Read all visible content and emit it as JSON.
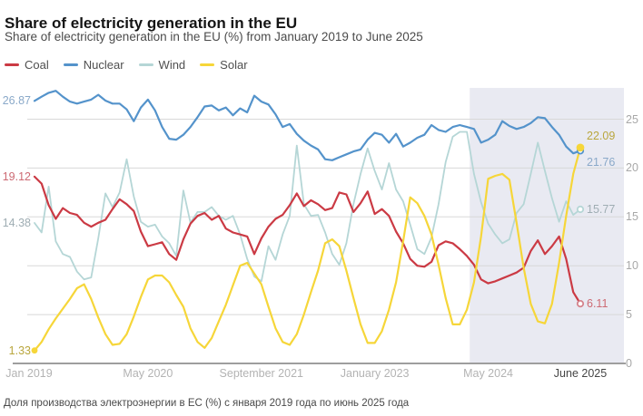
{
  "chart_data": {
    "type": "line",
    "title": "Share of electricity generation in the EU",
    "subtitle": "Share of electricity generation in the EU (%) from January 2019 to June 2025",
    "caption": "Доля производства электроэнергии в ЕС (%) с января 2019 года по июнь 2025 года",
    "x_start": "Jan 2019",
    "x_end": "June 2025",
    "n_points": 78,
    "x_ticks": [
      {
        "label": "Jan 2019",
        "month": 0,
        "emphasis": false
      },
      {
        "label": "May 2020",
        "month": 16,
        "emphasis": false
      },
      {
        "label": "September 2021",
        "month": 32,
        "emphasis": false
      },
      {
        "label": "January 2023",
        "month": 48,
        "emphasis": false
      },
      {
        "label": "May 2024",
        "month": 64,
        "emphasis": false
      },
      {
        "label": "June 2025",
        "month": 77,
        "emphasis": true
      }
    ],
    "y_ticks": [
      25,
      20,
      15,
      10,
      5,
      0
    ],
    "ylim": [
      0,
      28.5
    ],
    "grid": "horizontal",
    "legend_position": "top-left",
    "highlight_region": {
      "start_month": 61.4,
      "color": "#e9eaf2"
    },
    "axis_color": "#9e9e9e",
    "grid_color": "#d8d8d8",
    "series": [
      {
        "name": "Coal",
        "color": "#cb3a44",
        "label_color": "#cd6a73",
        "marker_color": "#d4838c",
        "start_label": "19.12",
        "end_label": "6.11",
        "end_marker": "open",
        "values": [
          19.12,
          18.4,
          16.2,
          14.8,
          15.9,
          15.4,
          15.2,
          14.4,
          14.0,
          14.4,
          14.7,
          15.8,
          16.8,
          16.3,
          15.6,
          13.5,
          12.0,
          12.2,
          12.4,
          11.2,
          10.6,
          12.7,
          14.3,
          15.1,
          15.4,
          14.7,
          15.1,
          13.8,
          13.4,
          13.2,
          13.0,
          11.2,
          12.8,
          14.0,
          14.8,
          15.2,
          16.2,
          17.4,
          16.1,
          16.7,
          16.3,
          15.7,
          15.9,
          17.5,
          17.3,
          15.5,
          16.4,
          17.6,
          15.3,
          15.8,
          15.1,
          13.5,
          12.3,
          10.7,
          10.0,
          9.9,
          10.4,
          12.1,
          12.5,
          12.3,
          11.7,
          11.0,
          10.1,
          8.6,
          8.2,
          8.4,
          8.7,
          9.0,
          9.3,
          9.8,
          11.5,
          12.6,
          11.2,
          12.0,
          13.0,
          10.7,
          7.3,
          6.11
        ]
      },
      {
        "name": "Nuclear",
        "color": "#5493cb",
        "label_color": "#8aa9c9",
        "marker_color": "#5493cb",
        "start_label": "26.87",
        "end_label": "21.76",
        "end_marker": "open",
        "values": [
          26.87,
          27.3,
          27.7,
          27.9,
          27.3,
          26.8,
          26.6,
          26.8,
          27.0,
          27.5,
          26.9,
          26.6,
          26.6,
          26.0,
          24.8,
          26.2,
          27.0,
          25.9,
          24.2,
          23.0,
          22.9,
          23.4,
          24.2,
          25.2,
          26.3,
          26.4,
          25.9,
          26.2,
          25.4,
          26.1,
          25.7,
          27.4,
          26.8,
          26.5,
          25.5,
          24.2,
          24.5,
          23.5,
          22.8,
          22.3,
          21.9,
          20.9,
          20.8,
          21.1,
          21.4,
          21.7,
          21.9,
          22.9,
          23.6,
          23.4,
          22.6,
          23.5,
          22.2,
          22.6,
          23.1,
          23.4,
          24.4,
          23.9,
          23.7,
          24.2,
          24.4,
          24.2,
          24.0,
          22.6,
          22.9,
          23.4,
          24.8,
          24.3,
          24.0,
          24.2,
          24.6,
          25.2,
          25.1,
          24.2,
          23.4,
          22.2,
          21.5,
          21.76
        ]
      },
      {
        "name": "Wind",
        "color": "#b5d6d6",
        "label_color": "#9fadb3",
        "marker_color": "#b5d6d6",
        "start_label": "14.38",
        "end_label": "15.77",
        "end_marker": "open",
        "values": [
          14.38,
          13.4,
          18.1,
          12.5,
          11.2,
          10.9,
          9.4,
          8.6,
          8.8,
          12.8,
          17.4,
          16.0,
          17.5,
          20.9,
          17.1,
          14.5,
          14.0,
          14.2,
          13.0,
          12.3,
          11.0,
          17.7,
          14.4,
          15.5,
          15.5,
          16.0,
          15.1,
          14.7,
          15.1,
          13.2,
          10.7,
          8.9,
          8.4,
          12.0,
          10.6,
          13.2,
          15.1,
          22.3,
          16.3,
          15.1,
          15.2,
          13.4,
          11.2,
          10.1,
          12.3,
          16.3,
          19.4,
          22.0,
          19.7,
          17.8,
          20.5,
          17.8,
          16.6,
          14.2,
          11.7,
          11.2,
          12.9,
          16.3,
          20.6,
          23.2,
          23.7,
          23.7,
          19.4,
          16.5,
          14.3,
          13.2,
          12.3,
          12.7,
          15.4,
          16.3,
          19.4,
          22.6,
          19.7,
          16.9,
          14.5,
          16.6,
          15.2,
          15.77
        ]
      },
      {
        "name": "Solar",
        "color": "#f6d639",
        "label_color": "#b9a63d",
        "marker_color": "#f6d639",
        "start_label": "1.33",
        "end_label": "22.09",
        "start_marker": "filled",
        "end_marker": "filled",
        "values": [
          1.33,
          2.2,
          3.5,
          4.6,
          5.6,
          6.6,
          7.7,
          8.1,
          6.6,
          4.7,
          3.0,
          1.9,
          2.0,
          3.0,
          4.8,
          6.8,
          8.6,
          9.0,
          9.0,
          8.3,
          7.0,
          5.8,
          3.6,
          2.2,
          1.6,
          2.6,
          4.3,
          6.0,
          8.0,
          10.0,
          10.3,
          9.2,
          8.1,
          5.8,
          3.6,
          2.2,
          1.9,
          3.0,
          5.0,
          7.3,
          9.5,
          12.3,
          12.7,
          12.0,
          9.5,
          6.7,
          4.0,
          2.1,
          2.1,
          3.3,
          5.5,
          8.3,
          12.5,
          17.0,
          16.4,
          15.1,
          13.2,
          10.1,
          6.7,
          4.0,
          4.0,
          5.5,
          8.3,
          13.0,
          18.9,
          19.2,
          19.4,
          18.8,
          14.4,
          9.8,
          6.1,
          4.3,
          4.1,
          6.1,
          10.3,
          15.1,
          19.4,
          22.09
        ]
      }
    ]
  }
}
